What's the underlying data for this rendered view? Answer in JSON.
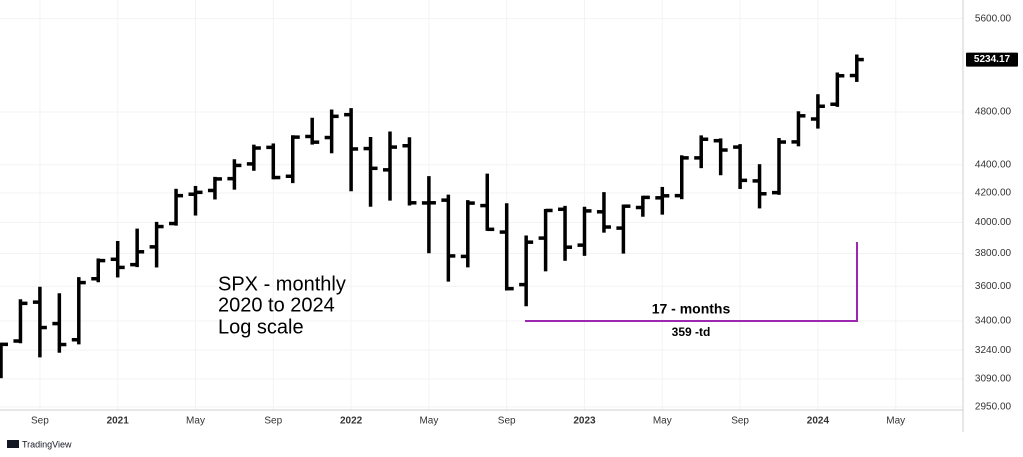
{
  "chart_data": {
    "type": "ohlc",
    "categories": [
      null,
      null,
      "Sep",
      null,
      null,
      null,
      "2021",
      null,
      null,
      null,
      "May",
      null,
      null,
      null,
      "Sep",
      null,
      null,
      null,
      "2022",
      null,
      null,
      null,
      "May",
      null,
      null,
      null,
      "Sep",
      null,
      null,
      null,
      "2023",
      null,
      null,
      null,
      "May",
      null,
      null,
      null,
      "Sep",
      null,
      null,
      null,
      "2024",
      null,
      null,
      null,
      "May"
    ],
    "open": [
      3105,
      3289,
      3507,
      3385,
      3296,
      3645,
      3764,
      3731,
      3842,
      3993,
      4191,
      4217,
      4300,
      4406,
      4528,
      4317,
      4610,
      4602,
      4779,
      4519,
      4363,
      4540,
      4131,
      4150,
      3782,
      4113,
      3937,
      3610,
      3898,
      4088,
      3853,
      4071,
      3963,
      4100,
      4166,
      4181,
      4450,
      4578,
      4530,
      4284,
      4202,
      4569,
      4745,
      4862,
      5098,
      null,
      null
    ],
    "high": [
      3272,
      3515,
      3588,
      3550,
      3646,
      3760,
      3870,
      3950,
      3994,
      4218,
      4238,
      4302,
      4429,
      4537,
      4546,
      4608,
      4743,
      4808,
      4819,
      4595,
      4637,
      4593,
      4307,
      4178,
      4140,
      4325,
      4119,
      3905,
      4080,
      4101,
      4095,
      4195,
      4110,
      4170,
      4231,
      4458,
      4607,
      4584,
      4541,
      4393,
      4587,
      4794,
      4931,
      5111,
      5265,
      null,
      null
    ],
    "low": [
      3101,
      3285,
      3209,
      3234,
      3279,
      3633,
      3662,
      3725,
      3723,
      3989,
      4056,
      4165,
      4233,
      4367,
      4306,
      4279,
      4560,
      4495,
      4222,
      4115,
      4157,
      4124,
      3811,
      3637,
      3723,
      3955,
      3584,
      3492,
      3699,
      3764,
      3795,
      3943,
      3809,
      4048,
      4062,
      4167,
      4386,
      4335,
      4238,
      4104,
      4197,
      4547,
      4682,
      4853,
      5057,
      null,
      null
    ],
    "close": [
      3271,
      3500,
      3363,
      3270,
      3622,
      3756,
      3714,
      3811,
      3973,
      4181,
      4204,
      4298,
      4395,
      4523,
      4308,
      4605,
      4567,
      4766,
      4516,
      4374,
      4530,
      4132,
      4132,
      3785,
      4130,
      3955,
      3586,
      3872,
      4080,
      3840,
      4077,
      3970,
      4109,
      4169,
      4180,
      4450,
      4589,
      4508,
      4288,
      4194,
      4568,
      4770,
      4846,
      5096,
      5234,
      null,
      null
    ],
    "color": "#000000",
    "log_scale": true,
    "grid": true,
    "ylim": [
      2935,
      5775
    ],
    "yticks": [
      {
        "value": 2950,
        "label": "2950.00"
      },
      {
        "value": 3090,
        "label": "3090.00"
      },
      {
        "value": 3240,
        "label": "3240.00"
      },
      {
        "value": 3400,
        "label": "3400.00"
      },
      {
        "value": 3600,
        "label": "3600.00"
      },
      {
        "value": 3800,
        "label": "3800.00"
      },
      {
        "value": 4000,
        "label": "4000.00"
      },
      {
        "value": 4200,
        "label": "4200.00"
      },
      {
        "value": 4400,
        "label": "4400.00"
      },
      {
        "value": 4800,
        "label": "4800.00"
      },
      {
        "value": 5600,
        "label": "5600.00"
      }
    ],
    "last_price": 5234.17,
    "annotations": [
      "SPX - monthly",
      "2020 to 2024",
      "Log scale",
      "17 - months",
      "359 -td"
    ],
    "brand": "TradingView"
  }
}
